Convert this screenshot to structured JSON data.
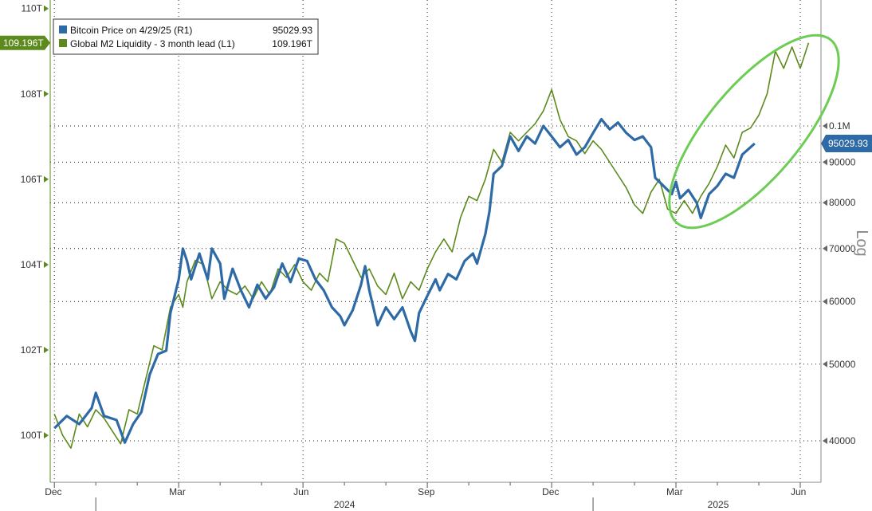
{
  "chart_data": {
    "type": "line",
    "legend": {
      "placement": "top-left",
      "entries": [
        {
          "label": "Bitcoin Price on 4/29/25 (R1)",
          "value": "95029.93",
          "color": "#2e6aa6"
        },
        {
          "label": "Global M2 Liquidity - 3 month lead (L1)",
          "value": "109.196T",
          "color": "#5c8a1c"
        }
      ]
    },
    "left_axis": {
      "ticks": [
        "110T",
        "108T",
        "106T",
        "104T",
        "102T",
        "100T"
      ],
      "tick_values": [
        110,
        108,
        106,
        104,
        102,
        100
      ],
      "range": [
        98.9,
        110.2
      ],
      "current_tag": "109.196T",
      "current_value": 109.196,
      "color": "#5c8a1c"
    },
    "right_axis": {
      "ticks": [
        "0.1M",
        "90000",
        "80000",
        "70000",
        "60000",
        "50000",
        "40000"
      ],
      "tick_values": [
        100000,
        90000,
        80000,
        70000,
        60000,
        50000,
        40000
      ],
      "scale_label": "Log",
      "log": true,
      "current_tag": "95029.93",
      "current_value": 95029.93,
      "color": "#2e6aa6"
    },
    "x_axis": {
      "month_labels": [
        {
          "label": "Dec",
          "t": 0.0
        },
        {
          "label": "Mar",
          "t": 3.0
        },
        {
          "label": "Jun",
          "t": 6.0
        },
        {
          "label": "Sep",
          "t": 9.0
        },
        {
          "label": "Dec",
          "t": 12.0
        },
        {
          "label": "Mar",
          "t": 15.0
        },
        {
          "label": "Jun",
          "t": 18.0
        }
      ],
      "year_labels": [
        "2024",
        "2025"
      ],
      "range": [
        -0.1,
        18.5
      ]
    },
    "grid": true,
    "series": [
      {
        "name": "Bitcoin Price on 4/29/25 (R1)",
        "axis": "right",
        "color": "#2e6aa6",
        "points": [
          [
            0.0,
            41500
          ],
          [
            0.3,
            43000
          ],
          [
            0.6,
            42000
          ],
          [
            0.9,
            44000
          ],
          [
            1.0,
            46000
          ],
          [
            1.2,
            43000
          ],
          [
            1.5,
            42500
          ],
          [
            1.7,
            39800
          ],
          [
            1.9,
            42000
          ],
          [
            2.1,
            43500
          ],
          [
            2.3,
            48500
          ],
          [
            2.5,
            51500
          ],
          [
            2.7,
            52000
          ],
          [
            2.8,
            58000
          ],
          [
            3.0,
            64000
          ],
          [
            3.1,
            70000
          ],
          [
            3.2,
            67500
          ],
          [
            3.3,
            64000
          ],
          [
            3.5,
            69000
          ],
          [
            3.7,
            64000
          ],
          [
            3.8,
            70000
          ],
          [
            4.0,
            67000
          ],
          [
            4.1,
            60500
          ],
          [
            4.3,
            66000
          ],
          [
            4.5,
            62000
          ],
          [
            4.7,
            59000
          ],
          [
            4.9,
            63000
          ],
          [
            5.1,
            60500
          ],
          [
            5.3,
            62500
          ],
          [
            5.5,
            67000
          ],
          [
            5.7,
            63500
          ],
          [
            5.9,
            68000
          ],
          [
            6.1,
            67500
          ],
          [
            6.3,
            64000
          ],
          [
            6.5,
            62000
          ],
          [
            6.7,
            59000
          ],
          [
            6.9,
            57500
          ],
          [
            7.0,
            56000
          ],
          [
            7.2,
            58500
          ],
          [
            7.4,
            63000
          ],
          [
            7.5,
            66500
          ],
          [
            7.6,
            62000
          ],
          [
            7.8,
            56000
          ],
          [
            8.0,
            59000
          ],
          [
            8.2,
            57000
          ],
          [
            8.4,
            59000
          ],
          [
            8.6,
            55000
          ],
          [
            8.7,
            53500
          ],
          [
            8.8,
            58000
          ],
          [
            9.0,
            61000
          ],
          [
            9.2,
            64000
          ],
          [
            9.3,
            62000
          ],
          [
            9.5,
            65000
          ],
          [
            9.7,
            64000
          ],
          [
            9.9,
            67500
          ],
          [
            10.1,
            69000
          ],
          [
            10.2,
            67000
          ],
          [
            10.4,
            73000
          ],
          [
            10.5,
            78000
          ],
          [
            10.6,
            87000
          ],
          [
            10.8,
            89000
          ],
          [
            11.0,
            97000
          ],
          [
            11.2,
            93000
          ],
          [
            11.4,
            97000
          ],
          [
            11.6,
            95000
          ],
          [
            11.8,
            100000
          ],
          [
            12.0,
            97000
          ],
          [
            12.2,
            94000
          ],
          [
            12.4,
            96000
          ],
          [
            12.6,
            92000
          ],
          [
            12.8,
            94000
          ],
          [
            13.0,
            98000
          ],
          [
            13.2,
            102000
          ],
          [
            13.4,
            99000
          ],
          [
            13.6,
            101000
          ],
          [
            13.8,
            98000
          ],
          [
            14.0,
            96000
          ],
          [
            14.2,
            97000
          ],
          [
            14.4,
            94000
          ],
          [
            14.5,
            86000
          ],
          [
            14.7,
            84000
          ],
          [
            14.9,
            82000
          ],
          [
            15.0,
            85000
          ],
          [
            15.1,
            81000
          ],
          [
            15.3,
            83000
          ],
          [
            15.5,
            80000
          ],
          [
            15.6,
            76500
          ],
          [
            15.8,
            82000
          ],
          [
            16.0,
            84000
          ],
          [
            16.2,
            87000
          ],
          [
            16.4,
            86000
          ],
          [
            16.6,
            92000
          ],
          [
            16.8,
            94000
          ],
          [
            16.9,
            95029.93
          ]
        ]
      },
      {
        "name": "Global M2 Liquidity - 3 month lead (L1)",
        "axis": "left",
        "color": "#5c8a1c",
        "points": [
          [
            0.0,
            100.5
          ],
          [
            0.2,
            100.0
          ],
          [
            0.4,
            99.7
          ],
          [
            0.6,
            100.5
          ],
          [
            0.8,
            100.2
          ],
          [
            1.0,
            100.6
          ],
          [
            1.2,
            100.4
          ],
          [
            1.4,
            100.1
          ],
          [
            1.6,
            99.8
          ],
          [
            1.8,
            100.6
          ],
          [
            2.0,
            100.5
          ],
          [
            2.2,
            101.3
          ],
          [
            2.4,
            102.1
          ],
          [
            2.6,
            102.0
          ],
          [
            2.8,
            103.0
          ],
          [
            3.0,
            103.3
          ],
          [
            3.1,
            103.0
          ],
          [
            3.2,
            103.6
          ],
          [
            3.4,
            104.1
          ],
          [
            3.6,
            104.0
          ],
          [
            3.8,
            103.2
          ],
          [
            4.0,
            103.6
          ],
          [
            4.2,
            103.4
          ],
          [
            4.4,
            103.3
          ],
          [
            4.6,
            103.5
          ],
          [
            4.8,
            103.2
          ],
          [
            5.0,
            103.6
          ],
          [
            5.2,
            103.3
          ],
          [
            5.4,
            103.9
          ],
          [
            5.6,
            103.7
          ],
          [
            5.8,
            104.0
          ],
          [
            6.0,
            103.6
          ],
          [
            6.2,
            103.4
          ],
          [
            6.4,
            103.8
          ],
          [
            6.6,
            103.6
          ],
          [
            6.8,
            104.6
          ],
          [
            7.0,
            104.5
          ],
          [
            7.2,
            104.1
          ],
          [
            7.4,
            103.7
          ],
          [
            7.6,
            103.9
          ],
          [
            7.8,
            103.5
          ],
          [
            8.0,
            103.3
          ],
          [
            8.2,
            103.8
          ],
          [
            8.4,
            103.2
          ],
          [
            8.6,
            103.6
          ],
          [
            8.8,
            103.4
          ],
          [
            9.0,
            103.9
          ],
          [
            9.2,
            104.3
          ],
          [
            9.4,
            104.6
          ],
          [
            9.6,
            104.3
          ],
          [
            9.8,
            105.1
          ],
          [
            10.0,
            105.6
          ],
          [
            10.2,
            105.5
          ],
          [
            10.4,
            106.0
          ],
          [
            10.6,
            106.7
          ],
          [
            10.8,
            106.4
          ],
          [
            11.0,
            107.1
          ],
          [
            11.2,
            106.9
          ],
          [
            11.4,
            107.1
          ],
          [
            11.6,
            107.3
          ],
          [
            11.8,
            107.6
          ],
          [
            12.0,
            108.1
          ],
          [
            12.2,
            107.4
          ],
          [
            12.4,
            107.0
          ],
          [
            12.6,
            106.9
          ],
          [
            12.8,
            106.6
          ],
          [
            13.0,
            106.9
          ],
          [
            13.2,
            106.7
          ],
          [
            13.4,
            106.4
          ],
          [
            13.6,
            106.1
          ],
          [
            13.8,
            105.8
          ],
          [
            14.0,
            105.4
          ],
          [
            14.2,
            105.2
          ],
          [
            14.4,
            105.7
          ],
          [
            14.6,
            106.0
          ],
          [
            14.8,
            105.3
          ],
          [
            15.0,
            105.2
          ],
          [
            15.2,
            105.5
          ],
          [
            15.4,
            105.2
          ],
          [
            15.6,
            105.6
          ],
          [
            15.8,
            105.9
          ],
          [
            16.0,
            106.3
          ],
          [
            16.2,
            106.8
          ],
          [
            16.4,
            106.5
          ],
          [
            16.6,
            107.1
          ],
          [
            16.8,
            107.2
          ],
          [
            17.0,
            107.5
          ],
          [
            17.2,
            108.0
          ],
          [
            17.4,
            109.0
          ],
          [
            17.6,
            108.6
          ],
          [
            17.8,
            109.1
          ],
          [
            18.0,
            108.6
          ],
          [
            18.2,
            109.196
          ]
        ]
      }
    ]
  }
}
